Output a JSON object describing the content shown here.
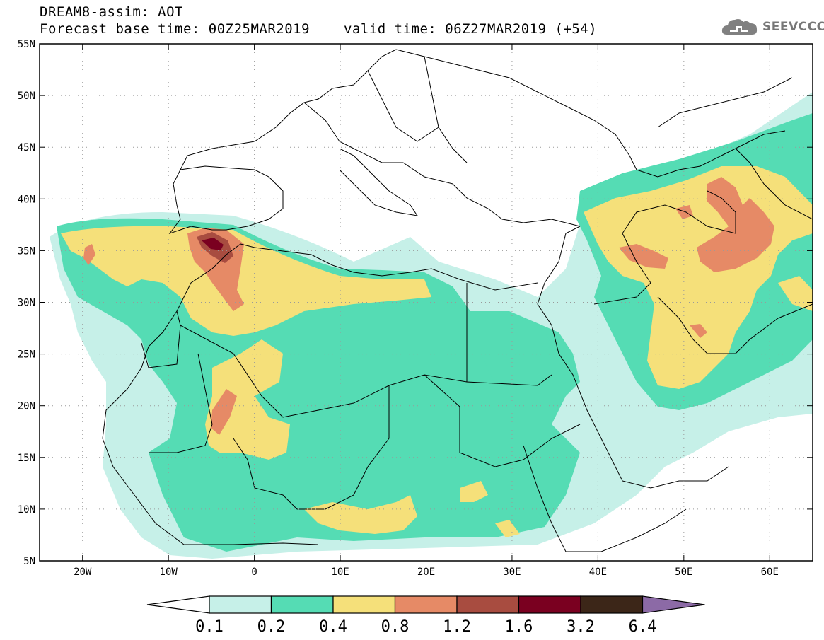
{
  "header": {
    "title": "DREAM8-assim: AOT",
    "base_time": "Forecast base time: 00Z25MAR2019",
    "valid_time": "valid time: 06Z27MAR2019 (+54)"
  },
  "logo": {
    "text": "SEEVCCC",
    "icon": "cloud-icon"
  },
  "map": {
    "lon_range": [
      -25,
      65
    ],
    "lat_range": [
      5,
      55
    ],
    "lon_ticks": [
      {
        "value": -20,
        "label": "20W"
      },
      {
        "value": -10,
        "label": "10W"
      },
      {
        "value": 0,
        "label": "0"
      },
      {
        "value": 10,
        "label": "10E"
      },
      {
        "value": 20,
        "label": "20E"
      },
      {
        "value": 30,
        "label": "30E"
      },
      {
        "value": 40,
        "label": "40E"
      },
      {
        "value": 50,
        "label": "50E"
      },
      {
        "value": 60,
        "label": "60E"
      }
    ],
    "lat_ticks": [
      {
        "value": 55,
        "label": "55N"
      },
      {
        "value": 50,
        "label": "50N"
      },
      {
        "value": 45,
        "label": "45N"
      },
      {
        "value": 40,
        "label": "40N"
      },
      {
        "value": 35,
        "label": "35N"
      },
      {
        "value": 30,
        "label": "30N"
      },
      {
        "value": 25,
        "label": "25N"
      },
      {
        "value": 20,
        "label": "20N"
      },
      {
        "value": 15,
        "label": "15N"
      },
      {
        "value": 10,
        "label": "10N"
      },
      {
        "value": 5,
        "label": "5N"
      }
    ],
    "grid": true
  },
  "colorbar": {
    "labels": [
      "0.1",
      "0.2",
      "0.4",
      "0.8",
      "1.2",
      "1.6",
      "3.2",
      "6.4"
    ],
    "colors": [
      "#c6f0e8",
      "#55dcb4",
      "#f5e07a",
      "#e68a66",
      "#a84c40",
      "#7a0020",
      "#3c2618",
      "#8c6aa6"
    ],
    "low_color": "#ffffff"
  },
  "colors": {
    "level1": "#c6f0e8",
    "level2": "#55dcb4",
    "level3": "#f5e07a",
    "level4": "#e68a66",
    "level5": "#a84c40",
    "level6": "#7a0020"
  }
}
